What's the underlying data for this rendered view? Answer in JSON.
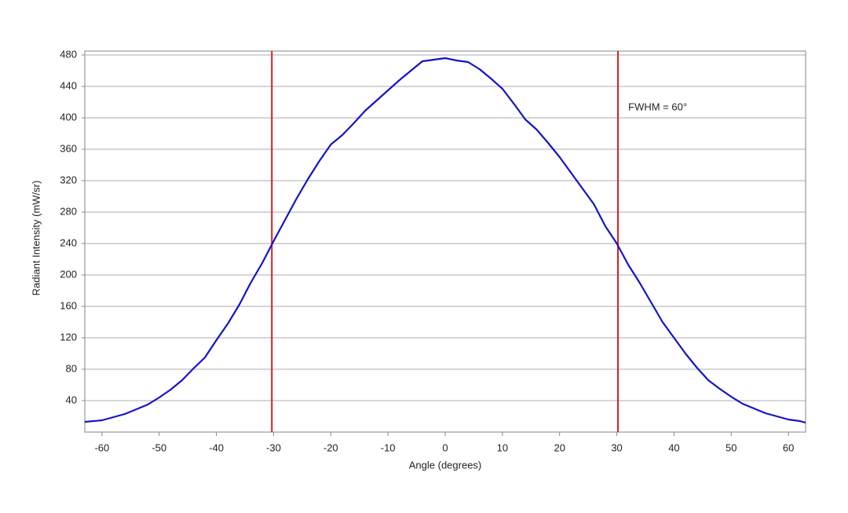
{
  "chart_data": {
    "type": "line",
    "x_label": "Angle (degrees)",
    "y_label": "Radiant Intensity (mW/sr)",
    "x": [
      -63,
      -60,
      -58,
      -56,
      -54,
      -52,
      -50,
      -48,
      -46,
      -44,
      -42,
      -40,
      -38,
      -36,
      -34,
      -32,
      -30,
      -28,
      -26,
      -24,
      -22,
      -20,
      -18,
      -16,
      -14,
      -12,
      -10,
      -8,
      -6,
      -4,
      -2,
      0,
      2,
      4,
      6,
      8,
      10,
      12,
      14,
      16,
      18,
      20,
      22,
      24,
      26,
      28,
      30,
      32,
      34,
      36,
      38,
      40,
      42,
      44,
      46,
      48,
      50,
      52,
      54,
      56,
      58,
      60,
      62,
      63
    ],
    "series": [
      {
        "color": "#1414c8",
        "values": [
          13,
          15,
          19,
          23,
          29,
          35,
          44,
          54,
          66,
          81,
          95,
          117,
          138,
          162,
          190,
          215,
          243,
          270,
          297,
          322,
          345,
          366,
          378,
          393,
          409,
          422,
          435,
          448,
          460,
          472,
          474,
          476,
          473,
          471,
          462,
          450,
          437,
          418,
          398,
          385,
          368,
          350,
          330,
          310,
          290,
          262,
          240,
          213,
          190,
          165,
          140,
          120,
          100,
          82,
          66,
          55,
          45,
          36,
          30,
          24,
          20,
          16,
          14,
          12
        ]
      }
    ],
    "xlim": [
      -63,
      63
    ],
    "ylim": [
      0,
      485
    ],
    "xticks": [
      -60,
      -50,
      -40,
      -30,
      -20,
      -10,
      0,
      10,
      20,
      30,
      40,
      50,
      60
    ],
    "yticks": [
      40,
      80,
      120,
      160,
      200,
      240,
      280,
      320,
      360,
      400,
      440,
      480
    ],
    "grid": true,
    "vlines": [
      -30.3,
      30.2
    ],
    "vline_color": "#d42020",
    "annotation": {
      "text": "FWHM = 60°",
      "x": 32,
      "y": 413
    }
  }
}
